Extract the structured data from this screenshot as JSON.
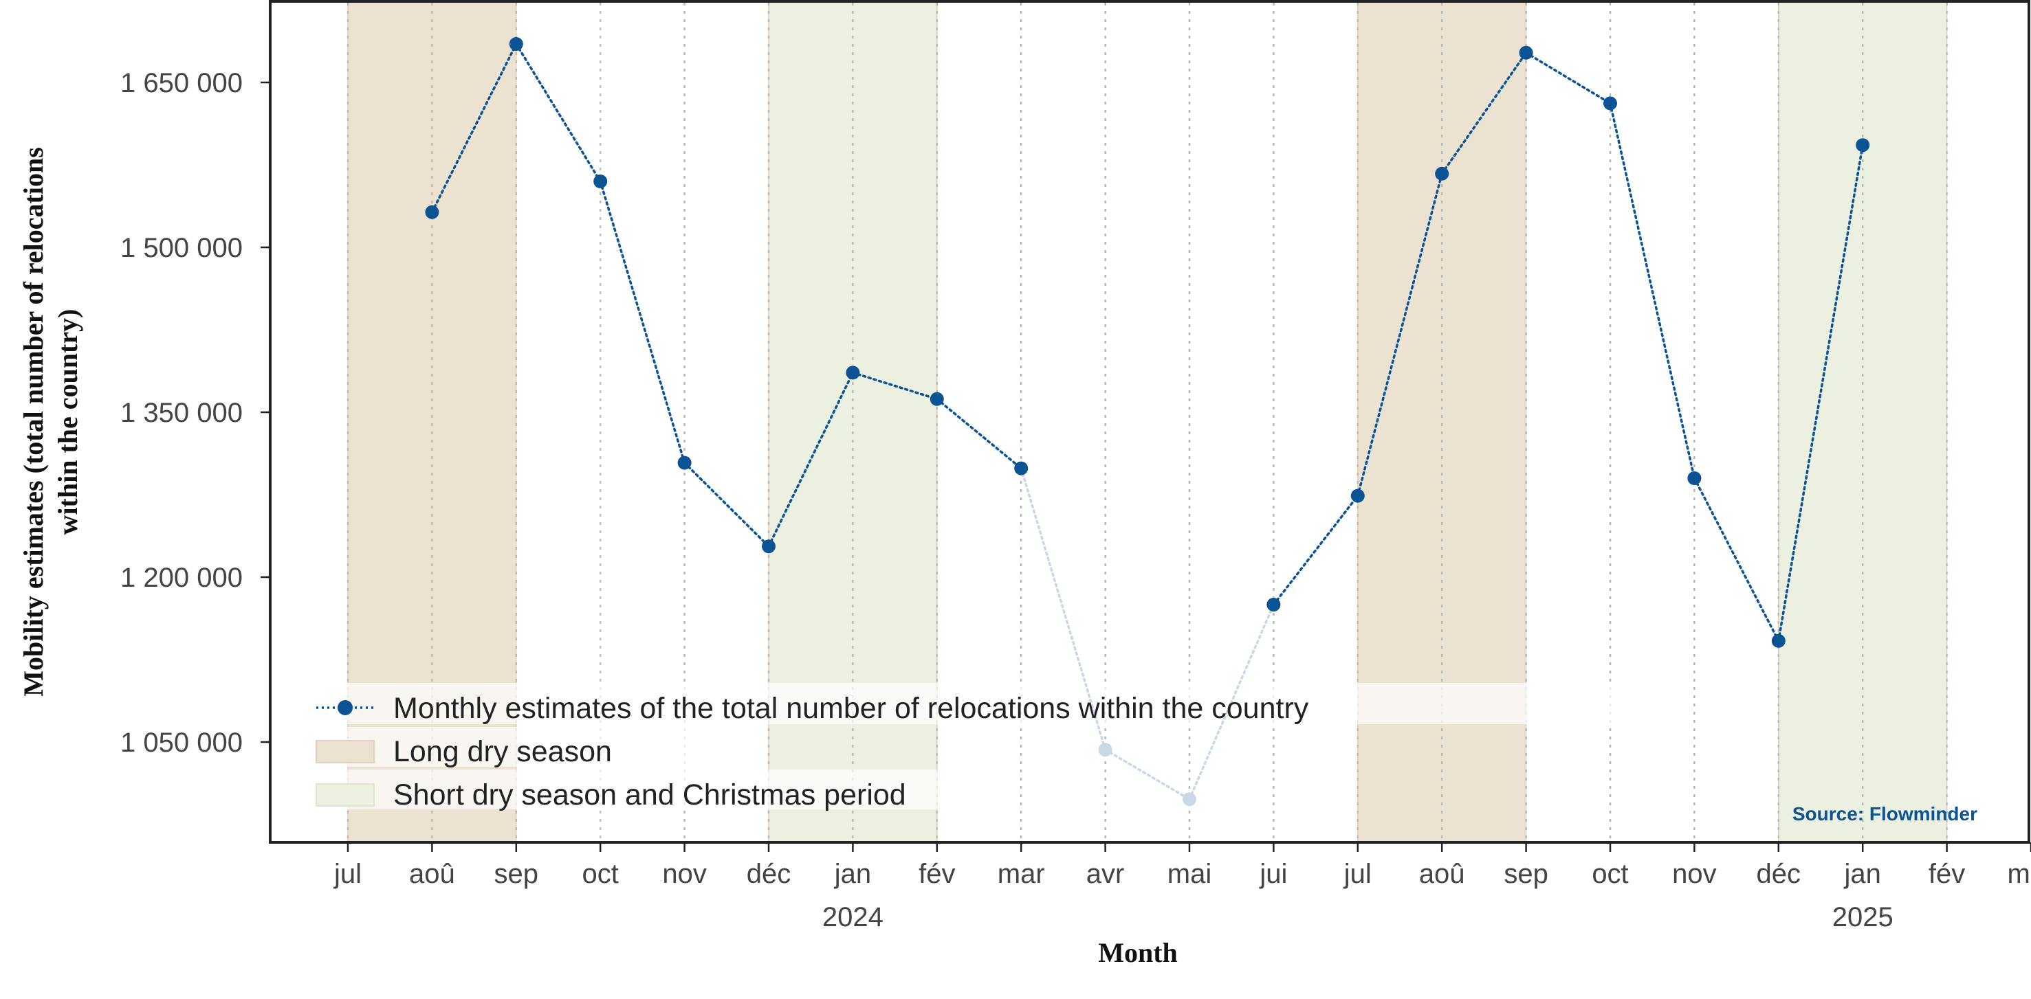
{
  "chart_data": {
    "type": "line",
    "title": "",
    "xlabel": "Month",
    "ylabel_lines": [
      "Mobility estimates (total number of relocations",
      "within the country)"
    ],
    "ylim": [
      965000,
      1720000
    ],
    "yticks": [
      1050000,
      1200000,
      1350000,
      1500000,
      1650000
    ],
    "ytick_labels": [
      "1 050 000",
      "1 200 000",
      "1 350 000",
      "1 500 000",
      "1 650 000"
    ],
    "x_range": [
      2023.5,
      2025.167
    ],
    "xticks": [
      {
        "pos": 0,
        "label": "jul"
      },
      {
        "pos": 1,
        "label": "aoû"
      },
      {
        "pos": 2,
        "label": "sep"
      },
      {
        "pos": 3,
        "label": "oct"
      },
      {
        "pos": 4,
        "label": "nov"
      },
      {
        "pos": 5,
        "label": "déc"
      },
      {
        "pos": 6,
        "label": "jan",
        "year": "2024"
      },
      {
        "pos": 7,
        "label": "fév"
      },
      {
        "pos": 8,
        "label": "mar"
      },
      {
        "pos": 9,
        "label": "avr"
      },
      {
        "pos": 10,
        "label": "mai"
      },
      {
        "pos": 11,
        "label": "jui"
      },
      {
        "pos": 12,
        "label": "jul"
      },
      {
        "pos": 13,
        "label": "aoû"
      },
      {
        "pos": 14,
        "label": "sep"
      },
      {
        "pos": 15,
        "label": "oct"
      },
      {
        "pos": 16,
        "label": "nov"
      },
      {
        "pos": 17,
        "label": "déc"
      },
      {
        "pos": 18,
        "label": "jan",
        "year": "2025"
      },
      {
        "pos": 19,
        "label": "fév"
      },
      {
        "pos": 20,
        "label": "mar"
      }
    ],
    "series": [
      {
        "name": "Monthly estimates of the total number of relocations within the country",
        "color": "#0b5394",
        "faded_color": "#c9d7e6",
        "points": [
          {
            "month": "2023-08",
            "value": 1532000
          },
          {
            "month": "2023-09",
            "value": 1685000
          },
          {
            "month": "2023-10",
            "value": 1560000
          },
          {
            "month": "2023-11",
            "value": 1304000
          },
          {
            "month": "2023-12",
            "value": 1228000
          },
          {
            "month": "2024-01",
            "value": 1386000
          },
          {
            "month": "2024-02",
            "value": 1362000
          },
          {
            "month": "2024-03",
            "value": 1299000
          },
          {
            "month": "2024-04",
            "value": 1043000,
            "faded": true
          },
          {
            "month": "2024-05",
            "value": 998000,
            "faded": true
          },
          {
            "month": "2024-06",
            "value": 1175000
          },
          {
            "month": "2024-07",
            "value": 1274000
          },
          {
            "month": "2024-08",
            "value": 1567000
          },
          {
            "month": "2024-09",
            "value": 1677000
          },
          {
            "month": "2024-10",
            "value": 1631000
          },
          {
            "month": "2024-11",
            "value": 1290000
          },
          {
            "month": "2024-12",
            "value": 1142000
          },
          {
            "month": "2025-01",
            "value": 1593000
          }
        ]
      }
    ],
    "shaded_regions": [
      {
        "name": "Long dry season",
        "from": "2023-07",
        "to": "2023-09",
        "color": "#ece2d2"
      },
      {
        "name": "Short dry season and Christmas period",
        "from": "2023-12",
        "to": "2024-02",
        "color": "#ebf0e0"
      },
      {
        "name": "Long dry season",
        "from": "2024-07",
        "to": "2024-09",
        "color": "#ece2d2"
      },
      {
        "name": "Short dry season and Christmas period",
        "from": "2024-12",
        "to": "2025-02",
        "color": "#ebf0e0"
      }
    ],
    "grid": {
      "x": true,
      "y": false,
      "x_style": "dotted"
    },
    "legend": {
      "position": "bottom-left",
      "entries": [
        {
          "label": "Monthly estimates of the total number of relocations within the country",
          "kind": "line-marker",
          "color": "#0b5394"
        },
        {
          "label": "Long dry season",
          "kind": "patch",
          "color": "#ece2d2"
        },
        {
          "label": "Short dry season and Christmas period",
          "kind": "patch",
          "color": "#ebf0e0"
        }
      ]
    },
    "annotation": {
      "text": "Source: Flowminder",
      "position": "bottom-right",
      "color": "#0b5394"
    }
  }
}
